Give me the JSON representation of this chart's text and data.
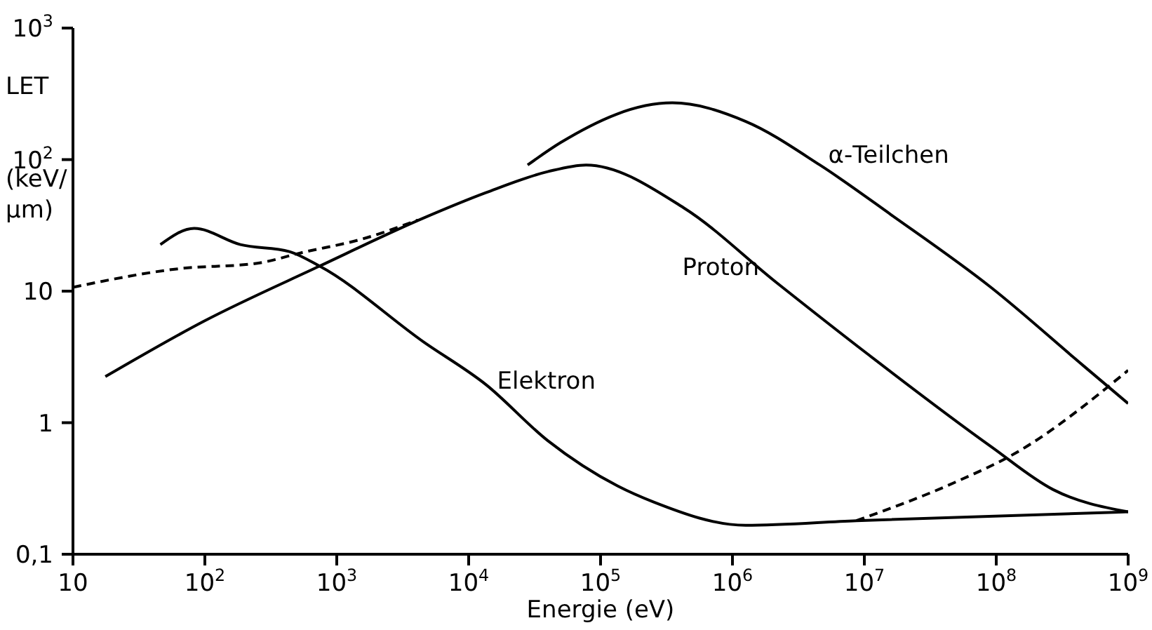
{
  "chart_data": {
    "type": "line",
    "xlabel": "Energie (eV)",
    "ylabel": "LET\n(keV/\nμm)",
    "log": "xy",
    "grid": false,
    "legend": false,
    "marker": "none",
    "line_style": "solid",
    "xlim": [
      10,
      1000000000
    ],
    "ylim": [
      0.1,
      1000
    ],
    "xticks": [
      10,
      {
        "value": 100,
        "label": "10$^{2}$"
      },
      {
        "value": 1000,
        "label": "10$^{3}$"
      },
      {
        "value": 10000,
        "label": "10$^{4}$"
      },
      {
        "value": 100000,
        "label": "10$^{5}$"
      },
      {
        "value": 1000000,
        "label": "10$^{6}$"
      },
      {
        "value": 10000000,
        "label": "10$^{7}$"
      },
      {
        "value": 100000000,
        "label": "10$^{8}$"
      },
      {
        "value": 1000000000,
        "label": "10$^{9}$"
      }
    ],
    "yticks": [
      {
        "value": 0.1,
        "label": "0,1"
      },
      1,
      10,
      {
        "value": 100,
        "label": "10$^{2}$"
      },
      {
        "value": 1000,
        "label": "10$^{3}$"
      }
    ],
    "series": [
      {
        "name": "Elektron",
        "color": "#000000",
        "x": [
          46,
          83,
          186,
          437,
          741,
          4570,
          13500,
          39800,
          135000,
          251000,
          1260000,
          8700000,
          1000000000
        ],
        "values": [
          22.6,
          30,
          22.6,
          20,
          15.5,
          4.1,
          1.95,
          0.73,
          0.33,
          0.25,
          0.166,
          0.18,
          0.21
        ]
      },
      {
        "color": "#000000",
        "line_style": "dashed",
        "x": [
          10,
          63,
          250,
          540,
          1580,
          4200
        ],
        "values": [
          10.7,
          14.8,
          16.3,
          19.6,
          25,
          35
        ]
      },
      {
        "color": "#000000",
        "line_style": "dashed",
        "x": [
          8700000,
          48000000,
          141000000,
          1000000000
        ],
        "values": [
          0.18,
          0.35,
          0.59,
          2.5
        ]
      },
      {
        "name": "Proton",
        "color": "#000000",
        "x": [
          17.6,
          98,
          741,
          4570,
          13500,
          39800,
          77600,
          427000,
          2140000,
          10700000,
          91000000,
          270000000,
          1000000000
        ],
        "values": [
          2.24,
          5.9,
          15.5,
          36,
          56,
          81,
          91,
          43,
          11.7,
          3.3,
          0.66,
          0.31,
          0.21
        ]
      },
      {
        "name": "α-Teilchen",
        "color": "#000000",
        "x": [
          28000,
          50000,
          350000,
          1260000,
          4600000,
          16000000,
          91000000,
          460000000,
          1000000000
        ],
        "values": [
          91,
          135,
          270,
          195,
          91,
          38,
          10.7,
          2.7,
          1.4
        ]
      }
    ]
  }
}
